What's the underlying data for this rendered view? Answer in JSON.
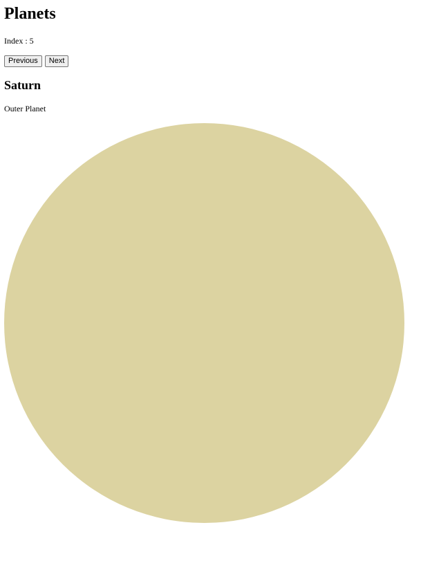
{
  "title": "Planets",
  "index_label": "Index : ",
  "index_value": "5",
  "buttons": {
    "previous": "Previous",
    "next": "Next"
  },
  "planet": {
    "name": "Saturn",
    "type": "Outer Planet",
    "color": "#dcd3a1"
  }
}
